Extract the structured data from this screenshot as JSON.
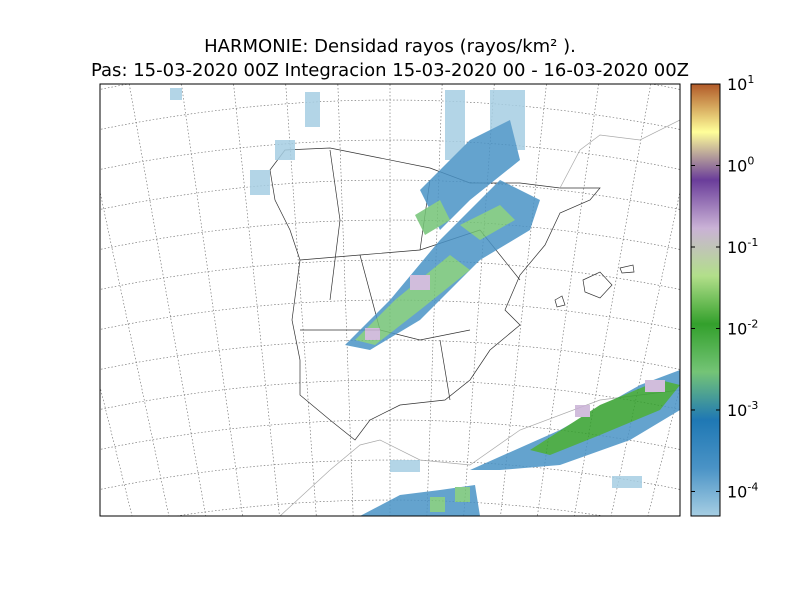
{
  "title": "HARMONIE: Densidad rayos  (rayos/km² ).",
  "subtitle": "Pas: 15-03-2020 00Z Integracion 15-03-2020 00 - 16-03-2020 00Z",
  "colorbar": {
    "log": true,
    "lim": [
      5e-05,
      10
    ],
    "colors": [
      "#a6cee3",
      "#4a93c6",
      "#1f78b4",
      "#74c476",
      "#33a02c",
      "#b2df8a",
      "#cab2d6",
      "#6a3d9a",
      "#ffff99",
      "#b15928"
    ],
    "ticks": [
      {
        "value": 0.0001,
        "label": "10",
        "exponent": "-4"
      },
      {
        "value": 0.001,
        "label": "10",
        "exponent": "-3"
      },
      {
        "value": 0.01,
        "label": "10",
        "exponent": "-2"
      },
      {
        "value": 0.1,
        "label": "10",
        "exponent": "-1"
      },
      {
        "value": 1,
        "label": "10",
        "exponent": "0"
      },
      {
        "value": 10,
        "label": "10",
        "exponent": "1"
      }
    ]
  }
}
